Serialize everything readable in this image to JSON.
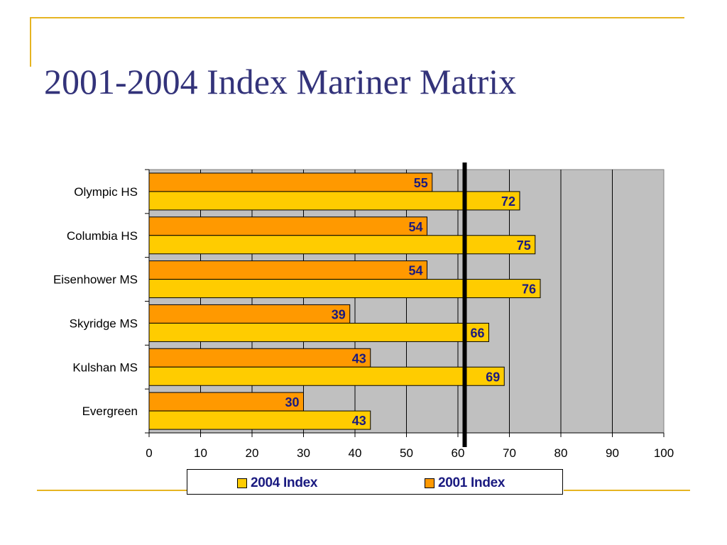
{
  "title": "2001-2004 Index Mariner Matrix",
  "colors": {
    "series_2004": "#ffcc00",
    "series_2001": "#ff9900",
    "plot_bg": "#c0c0c0",
    "accent_line": "#e6b422",
    "title_color": "#33337a",
    "label_color": "#1a1a80"
  },
  "chart_data": {
    "type": "bar",
    "orientation": "horizontal",
    "categories": [
      "Olympic HS",
      "Columbia HS",
      "Eisenhower MS",
      "Skyridge MS",
      "Kulshan MS",
      "Evergreen"
    ],
    "series": [
      {
        "name": "2001 Index",
        "values": [
          55,
          54,
          54,
          39,
          43,
          30
        ]
      },
      {
        "name": "2004 Index",
        "values": [
          72,
          75,
          76,
          66,
          69,
          43
        ]
      }
    ],
    "xlim": [
      0,
      100
    ],
    "x_ticks": [
      0,
      10,
      20,
      30,
      40,
      50,
      60,
      70,
      80,
      90,
      100
    ],
    "reference_line": 62,
    "grid": true,
    "legend_position": "bottom"
  },
  "legend": {
    "items": [
      {
        "label": "2004 Index",
        "color": "#ffcc00"
      },
      {
        "label": "2001 Index",
        "color": "#ff9900"
      }
    ]
  }
}
